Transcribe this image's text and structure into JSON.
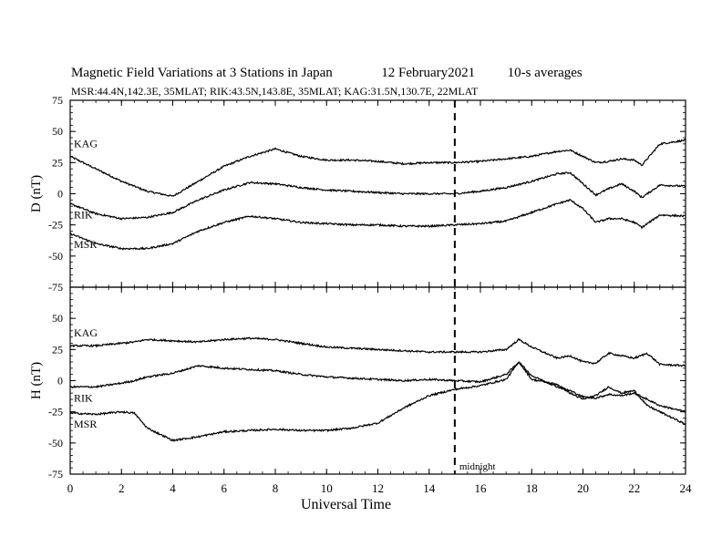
{
  "header": {
    "title": "Magnetic Field Variations at 3 Stations in Japan",
    "date": "12 February2021",
    "averaging": "10-s averages",
    "stations_line": "MSR:44.4N,142.3E, 35MLAT;  RIK:43.5N,143.8E, 35MLAT;  KAG:31.5N,130.7E, 22MLAT"
  },
  "chart_data": [
    {
      "type": "line",
      "panel": "top",
      "ylabel": "D (nT)",
      "ylim": [
        -75,
        75
      ],
      "yticks": [
        -75,
        -50,
        -25,
        0,
        25,
        50,
        75
      ],
      "xlim": [
        0,
        24
      ],
      "xticks": [
        0,
        2,
        4,
        6,
        8,
        10,
        12,
        14,
        16,
        18,
        20,
        22,
        24
      ],
      "x": [
        0,
        1,
        2,
        3,
        4,
        5,
        6,
        7,
        8,
        9,
        10,
        11,
        12,
        13,
        14,
        15,
        16,
        17,
        18,
        19,
        19.5,
        20,
        20.5,
        21,
        21.5,
        22,
        22.3,
        23,
        24
      ],
      "series": [
        {
          "name": "KAG",
          "values": [
            30,
            20,
            10,
            2,
            -2,
            10,
            22,
            30,
            36,
            30,
            27,
            27,
            26,
            24,
            25,
            25,
            26,
            28,
            30,
            34,
            35,
            30,
            25,
            26,
            28,
            27,
            23,
            40,
            43
          ]
        },
        {
          "name": "RIK",
          "values": [
            -8,
            -16,
            -20,
            -19,
            -15,
            -5,
            3,
            9,
            8,
            5,
            3,
            2,
            1,
            0,
            0,
            0,
            2,
            5,
            10,
            16,
            17,
            8,
            -1,
            4,
            8,
            2,
            -3,
            7,
            6
          ]
        },
        {
          "name": "MSR",
          "values": [
            -32,
            -40,
            -44,
            -44,
            -40,
            -30,
            -23,
            -18,
            -20,
            -23,
            -24,
            -25,
            -25,
            -26,
            -26,
            -25,
            -24,
            -22,
            -15,
            -8,
            -5,
            -12,
            -23,
            -20,
            -20,
            -23,
            -27,
            -17,
            -18
          ]
        }
      ],
      "annotations": []
    },
    {
      "type": "line",
      "panel": "bottom",
      "ylabel": "H (nT)",
      "ylim": [
        -75,
        75
      ],
      "yticks": [
        -75,
        -50,
        -25,
        0,
        25,
        50
      ],
      "xlim": [
        0,
        24
      ],
      "xticks": [
        0,
        2,
        4,
        6,
        8,
        10,
        12,
        14,
        16,
        18,
        20,
        22,
        24
      ],
      "xlabel": "Universal Time",
      "x": [
        0,
        1,
        2,
        2.5,
        3,
        4,
        5,
        6,
        7,
        8,
        9,
        10,
        11,
        12,
        13,
        14,
        15,
        16,
        17,
        17.5,
        18,
        19,
        19.5,
        20,
        20.5,
        21,
        21.5,
        22,
        22.5,
        23,
        24
      ],
      "series": [
        {
          "name": "KAG",
          "values": [
            28,
            28,
            30,
            31,
            33,
            32,
            31,
            33,
            34,
            33,
            30,
            27,
            26,
            25,
            24,
            23,
            23,
            23,
            25,
            33,
            27,
            18,
            20,
            15,
            14,
            22,
            20,
            18,
            22,
            13,
            12
          ]
        },
        {
          "name": "RIK",
          "values": [
            -5,
            -5,
            -2,
            0,
            3,
            6,
            12,
            10,
            9,
            8,
            5,
            3,
            2,
            1,
            0,
            1,
            0,
            -1,
            5,
            15,
            4,
            -5,
            -8,
            -13,
            -14,
            -11,
            -12,
            -10,
            -15,
            -20,
            -25
          ]
        },
        {
          "name": "MSR",
          "values": [
            -26,
            -27,
            -25,
            -26,
            -38,
            -48,
            -45,
            -41,
            -40,
            -39,
            -40,
            -40,
            -38,
            -34,
            -22,
            -12,
            -7,
            -4,
            1,
            15,
            1,
            -3,
            -10,
            -15,
            -12,
            -5,
            -10,
            -8,
            -20,
            -25,
            -35
          ]
        }
      ],
      "annotations": [
        {
          "text": "midnight",
          "x": 15
        }
      ]
    }
  ],
  "colors": {
    "line": "#000000",
    "background": "#ffffff"
  }
}
